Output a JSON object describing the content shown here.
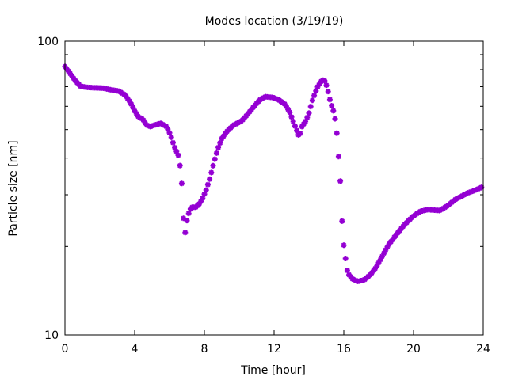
{
  "chart_data": {
    "type": "scatter",
    "title": "Modes location (3/19/19)",
    "xlabel": "Time [hour]",
    "ylabel": "Particle size [nm]",
    "xlim": [
      0,
      24
    ],
    "ylim": [
      10,
      100
    ],
    "yscale": "log",
    "xticks": [
      "0",
      "4",
      "8",
      "12",
      "16",
      "20",
      "24"
    ],
    "yticks": [
      "10",
      "100"
    ],
    "grid": false,
    "marker_color": "#9400D3",
    "series": [
      {
        "name": "mode",
        "x": [
          0,
          0.27,
          0.6,
          0.9,
          1.27,
          2.18,
          2.64,
          3.09,
          3.45,
          3.77,
          4.0,
          4.23,
          4.45,
          4.68,
          4.9,
          5.14,
          5.5,
          5.82,
          6.05,
          6.27,
          6.5,
          6.6,
          6.68,
          6.77,
          6.86,
          6.9,
          7.0,
          7.14,
          7.27,
          7.5,
          7.73,
          7.9,
          8.1,
          8.32,
          8.55,
          8.77,
          9.0,
          9.32,
          9.68,
          10.14,
          10.45,
          10.82,
          11.18,
          11.5,
          11.95,
          12.27,
          12.64,
          12.9,
          13.18,
          13.36,
          13.45,
          13.6,
          13.82,
          14.0,
          14.18,
          14.36,
          14.55,
          14.77,
          14.9,
          15.05,
          15.18,
          15.32,
          15.45,
          15.55,
          15.6,
          15.68,
          15.77,
          15.82,
          15.86,
          15.95,
          16.0,
          16.1,
          16.14,
          16.27,
          16.5,
          16.82,
          17.18,
          17.55,
          17.86,
          18.18,
          18.55,
          19.0,
          19.45,
          19.9,
          20.36,
          20.82,
          21.5,
          21.95,
          22.4,
          23.1,
          23.55,
          23.95
        ],
        "y": [
          82,
          78,
          73.3,
          70.2,
          69.6,
          69.2,
          68.3,
          67.6,
          65.6,
          61.6,
          57.9,
          55.1,
          54.4,
          51.8,
          51.2,
          51.8,
          52.5,
          51.2,
          48.1,
          43.8,
          40.9,
          37.7,
          34.2,
          28.2,
          19.5,
          22.3,
          24.5,
          26.5,
          27.2,
          27.2,
          28.0,
          29.2,
          31.1,
          34.2,
          38.7,
          43.0,
          46.6,
          49.5,
          51.8,
          53.5,
          56.1,
          59.7,
          63.1,
          64.7,
          64.3,
          63.1,
          60.9,
          57.2,
          51.8,
          48.6,
          47.2,
          51.2,
          53.5,
          56.9,
          62.4,
          66.8,
          71.1,
          73.8,
          73.3,
          69.6,
          63.9,
          59.7,
          56.9,
          52.1,
          48.6,
          41.7,
          36.4,
          31.5,
          26.2,
          22.3,
          20.2,
          18.2,
          17.0,
          16.1,
          15.5,
          15.2,
          15.4,
          16.1,
          17.0,
          18.4,
          20.2,
          21.9,
          23.6,
          25.1,
          26.3,
          26.7,
          26.5,
          27.5,
          28.9,
          30.4,
          31.1,
          31.9
        ]
      }
    ]
  }
}
